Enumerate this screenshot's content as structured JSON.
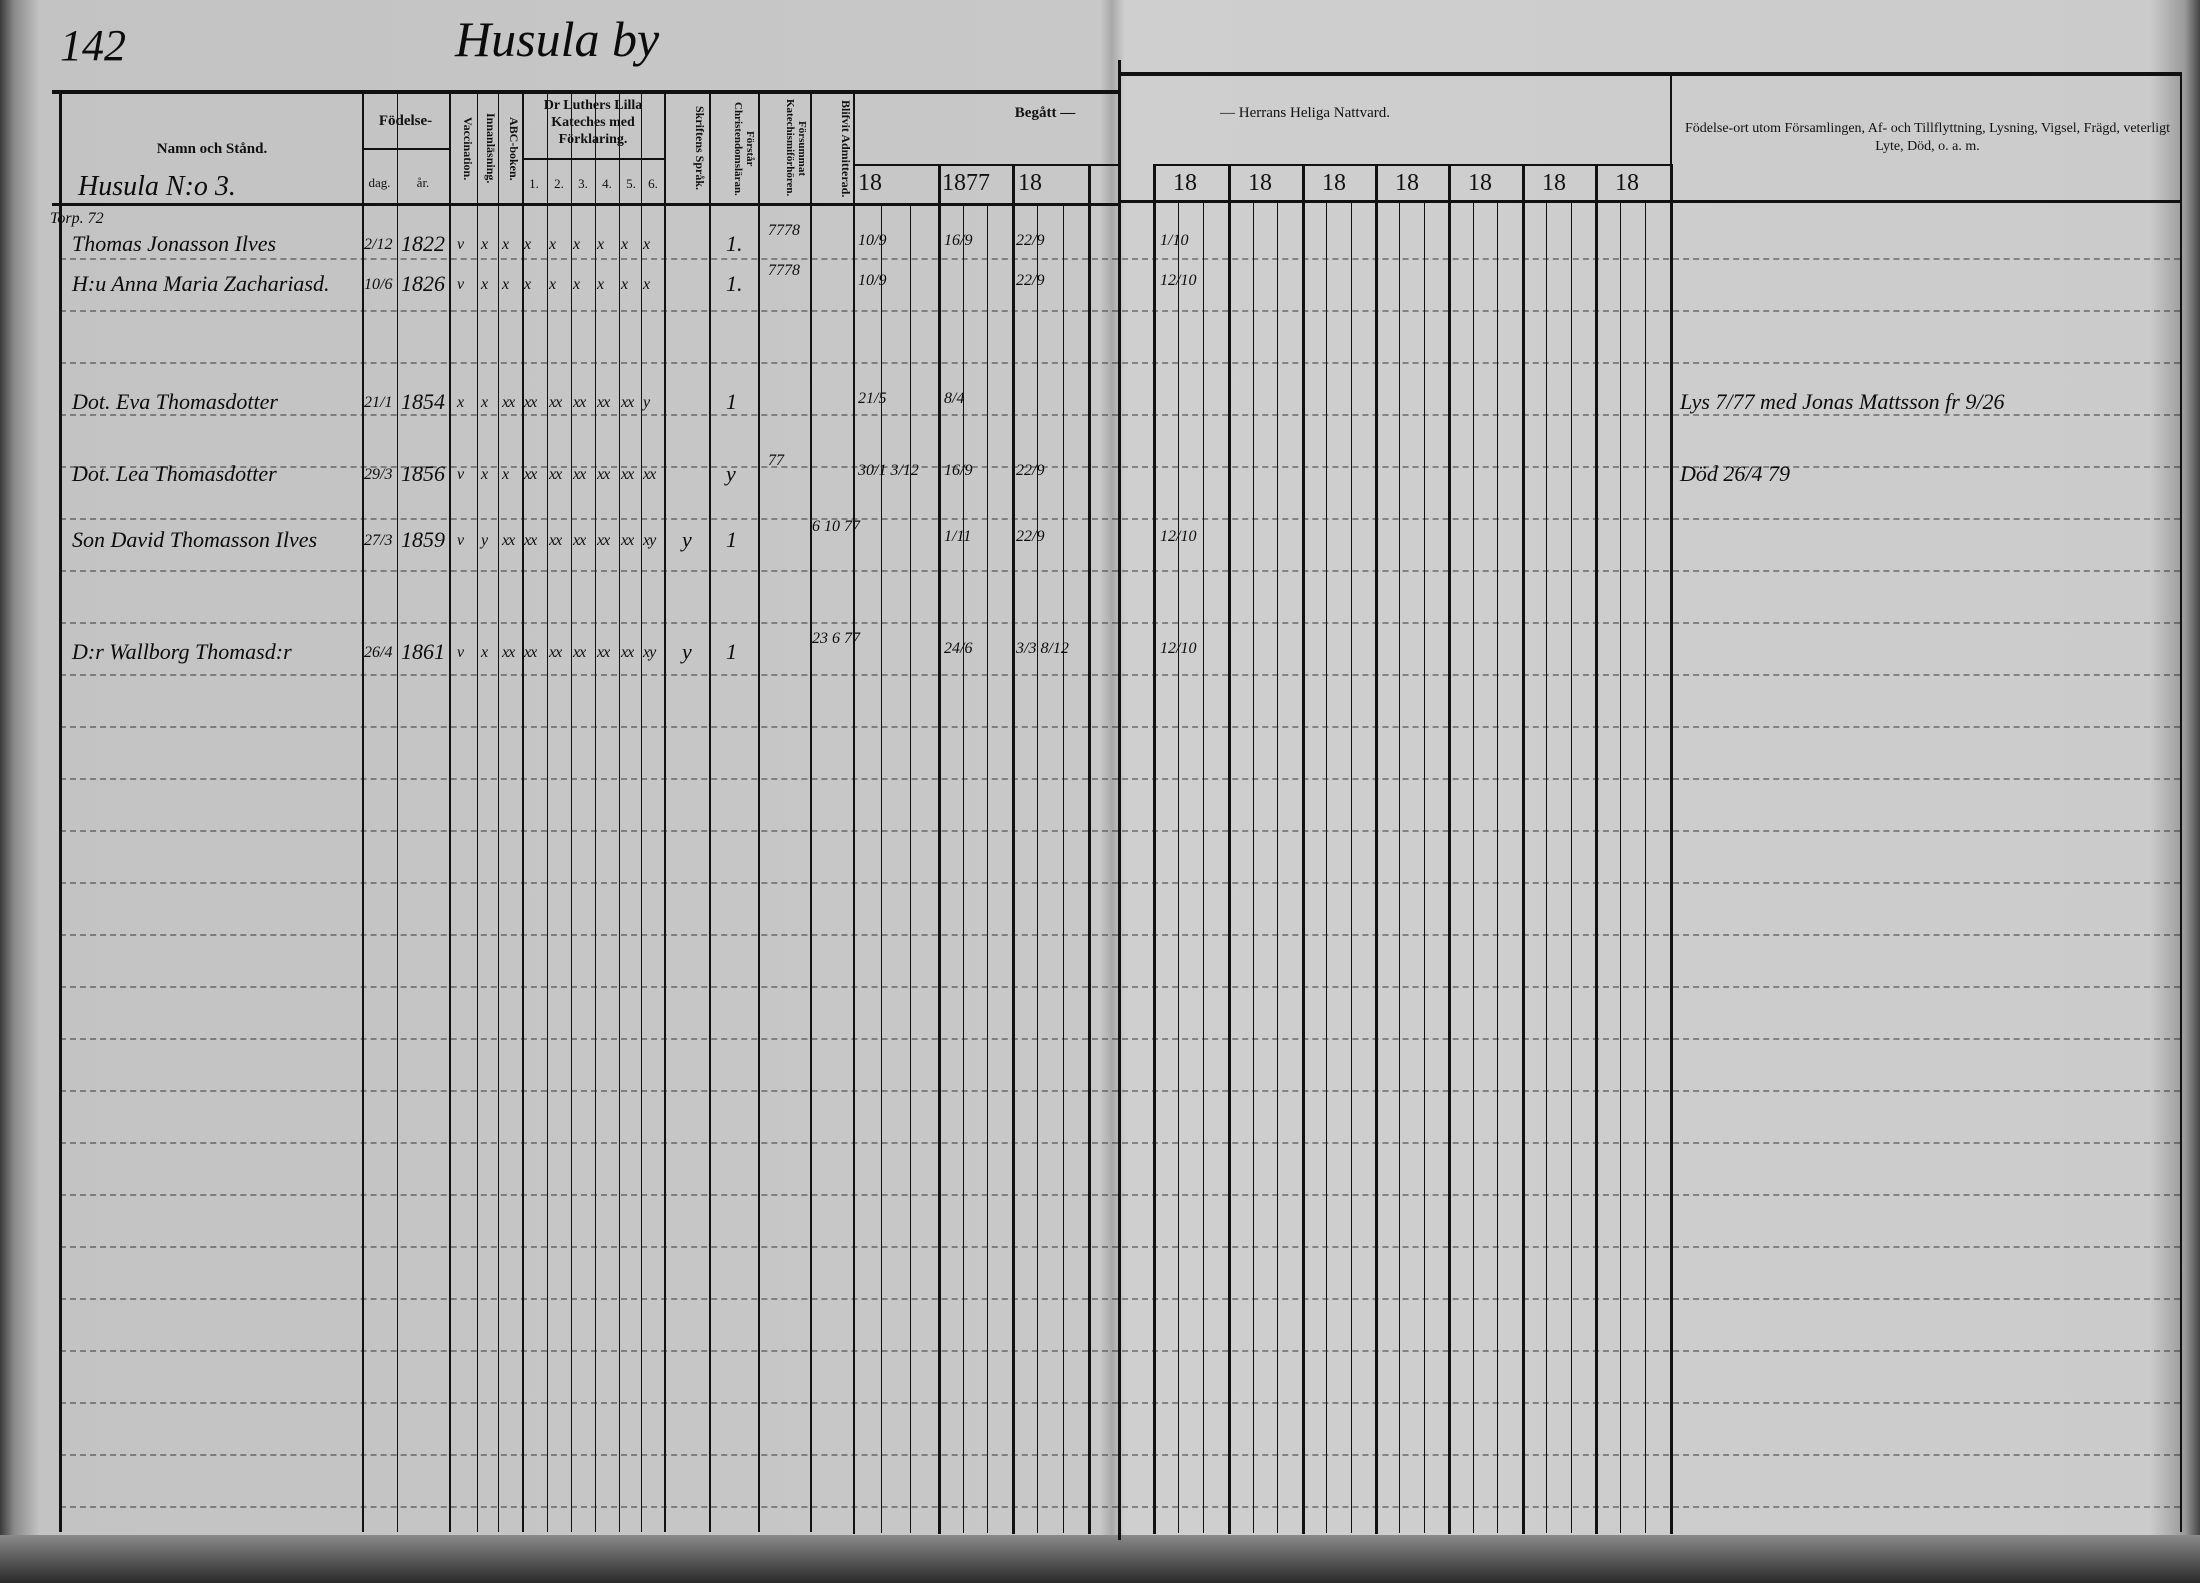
{
  "page": {
    "page_number": "142",
    "village_title": "Husula by",
    "household": "Husula N:o 3."
  },
  "header": {
    "name_col": "Namn och Stånd.",
    "birth": "Födelse-",
    "birth_day": "dag.",
    "birth_year": "år.",
    "vaccination": "Vaccination.",
    "innanlasning": "Innanläsning.",
    "abc": "ABC-boken.",
    "catechism": "Dr Luthers Lilla Kateches med Förklaring.",
    "catechism_parts": [
      "1.",
      "2.",
      "3.",
      "4.",
      "5.",
      "6."
    ],
    "skrift": "Skriftens Språk.",
    "forstar": "Förstår Christendomsläran.",
    "forsummat": "Försummat Katechismiförhören.",
    "blifvit": "Blifvit Admitterad.",
    "begatt": "Begått —",
    "nattvard": "— Herrans Heliga Nattvard.",
    "years_left": [
      "18",
      "1877",
      "18"
    ],
    "years_right": [
      "18",
      "18",
      "18",
      "18",
      "18",
      "18",
      "18"
    ],
    "remarks": "Födelse-ort utom Församlingen, Af- och Tillflyttning, Lysning, Vigsel, Frägd, veterligt Lyte, Död, o. a. m."
  },
  "rows": [
    {
      "prefix": "Torp. 72",
      "name": "Thomas Jonasson Ilves",
      "dag": "2/12",
      "ar": "1822",
      "vacc": "v",
      "innan": "x",
      "abc": "x",
      "kat": [
        "x",
        "x",
        "x",
        "x",
        "x",
        "x"
      ],
      "skrift": "",
      "forstar": "1.",
      "forsummat": "7778",
      "blifvit": "",
      "begatt": [
        "10/9",
        "16/9",
        "22/9"
      ],
      "nattvard": "1/10",
      "remark": ""
    },
    {
      "prefix": "",
      "name": "H:u Anna Maria Zachariasd.",
      "dag": "10/6",
      "ar": "1826",
      "vacc": "v",
      "innan": "x",
      "abc": "x",
      "kat": [
        "x",
        "x",
        "x",
        "x",
        "x",
        "x"
      ],
      "skrift": "",
      "forstar": "1.",
      "forsummat": "7778",
      "blifvit": "",
      "begatt": [
        "10/9",
        "",
        "22/9"
      ],
      "nattvard": "12/10",
      "remark": ""
    },
    {
      "prefix": "",
      "name": "Dot. Eva Thomasdotter",
      "dag": "21/1",
      "ar": "1854",
      "vacc": "x",
      "innan": "x",
      "abc": "xx",
      "kat": [
        "xx",
        "xx",
        "xx",
        "xx",
        "xx",
        "y"
      ],
      "skrift": "",
      "forstar": "1",
      "forsummat": "",
      "blifvit": "",
      "begatt": [
        "21/5",
        "8/4",
        ""
      ],
      "nattvard": "",
      "remark": "Lys 7/77 med Jonas Mattsson fr 9/26"
    },
    {
      "prefix": "",
      "name": "Dot. Lea Thomasdotter",
      "dag": "29/3",
      "ar": "1856",
      "vacc": "v",
      "innan": "x",
      "abc": "x",
      "kat": [
        "xx",
        "xx",
        "xx",
        "xx",
        "xx",
        "xx"
      ],
      "skrift": "",
      "forstar": "y",
      "forsummat": "77",
      "blifvit": "",
      "begatt": [
        "30/1 3/12",
        "16/9",
        "22/9"
      ],
      "nattvard": "",
      "remark": "Död 26/4 79"
    },
    {
      "prefix": "",
      "name": "Son David Thomasson Ilves",
      "dag": "27/3",
      "ar": "1859",
      "vacc": "v",
      "innan": "y",
      "abc": "xx",
      "kat": [
        "xx",
        "xx",
        "xx",
        "xx",
        "xx",
        "xy"
      ],
      "skrift": "y",
      "forstar": "1",
      "forsummat": "",
      "blifvit": "6 10 77",
      "begatt": [
        "",
        "1/11",
        "22/9"
      ],
      "nattvard": "12/10",
      "remark": ""
    },
    {
      "prefix": "",
      "name": "D:r Wallborg Thomasd:r",
      "dag": "26/4",
      "ar": "1861",
      "vacc": "v",
      "innan": "x",
      "abc": "xx",
      "kat": [
        "xx",
        "xx",
        "xx",
        "xx",
        "xx",
        "xy"
      ],
      "skrift": "y",
      "forstar": "1",
      "forsummat": "",
      "blifvit": "23 6 77",
      "begatt": [
        "",
        "24/6",
        "3/3 8/12"
      ],
      "nattvard": "12/10",
      "remark": ""
    }
  ]
}
